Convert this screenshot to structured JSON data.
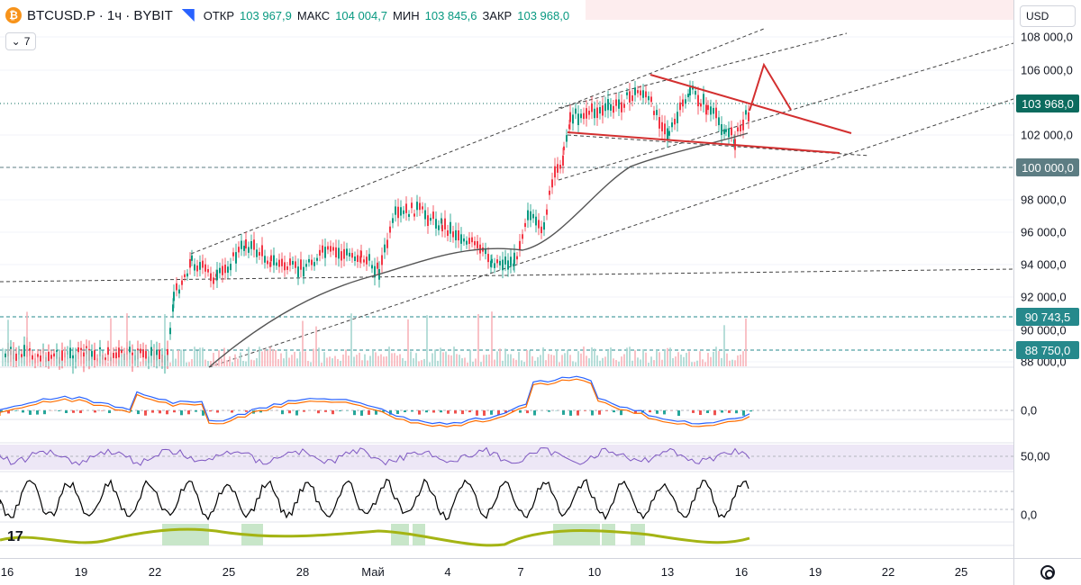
{
  "legend": {
    "coin_icon": "₿",
    "symbol": "BTCUSD.P · 1ч · BYBIT",
    "ohlc": [
      {
        "label": "ОТКР",
        "value": "103 967,9"
      },
      {
        "label": "МАКС",
        "value": "104 004,7"
      },
      {
        "label": "МИН",
        "value": "103 845,6"
      },
      {
        "label": "ЗАКР",
        "value": "103 968,0"
      }
    ]
  },
  "indicators_toggle": {
    "count": "7",
    "icon": "chevron-down-icon"
  },
  "price_scale": {
    "currency": "USD",
    "ticks": [
      "108 000,0",
      "106 000,0",
      "102 000,0",
      "98 000,0",
      "96 000,0",
      "94 000,0",
      "92 000,0",
      "90 000,0",
      "88 000,0"
    ],
    "badges": [
      {
        "text": "103 968,0",
        "color": "#0b6b5e"
      },
      {
        "text": "100 000,0",
        "color": "#5d7d83"
      },
      {
        "text": "90 743,5",
        "color": "#26898c"
      },
      {
        "text": "88 750,0",
        "color": "#26898c"
      }
    ],
    "macd_zero": "0,0",
    "rsi_mid": "50,00",
    "stoch_zero": "0,0"
  },
  "time_scale": {
    "labels": [
      "16",
      "19",
      "22",
      "25",
      "28",
      "Май",
      "4",
      "7",
      "10",
      "13",
      "16",
      "19",
      "22",
      "25"
    ]
  },
  "colors": {
    "up": "#089981",
    "down": "#f23645",
    "ma": "#555555",
    "annotation": "#d32f2f",
    "channel": "#444444",
    "macd_line": "#2962ff",
    "signal_line": "#ff6d00",
    "rsi_line": "#7e57c2",
    "rsi_band": "#ede7f6",
    "trend_green": "#c8e6c9"
  }
}
